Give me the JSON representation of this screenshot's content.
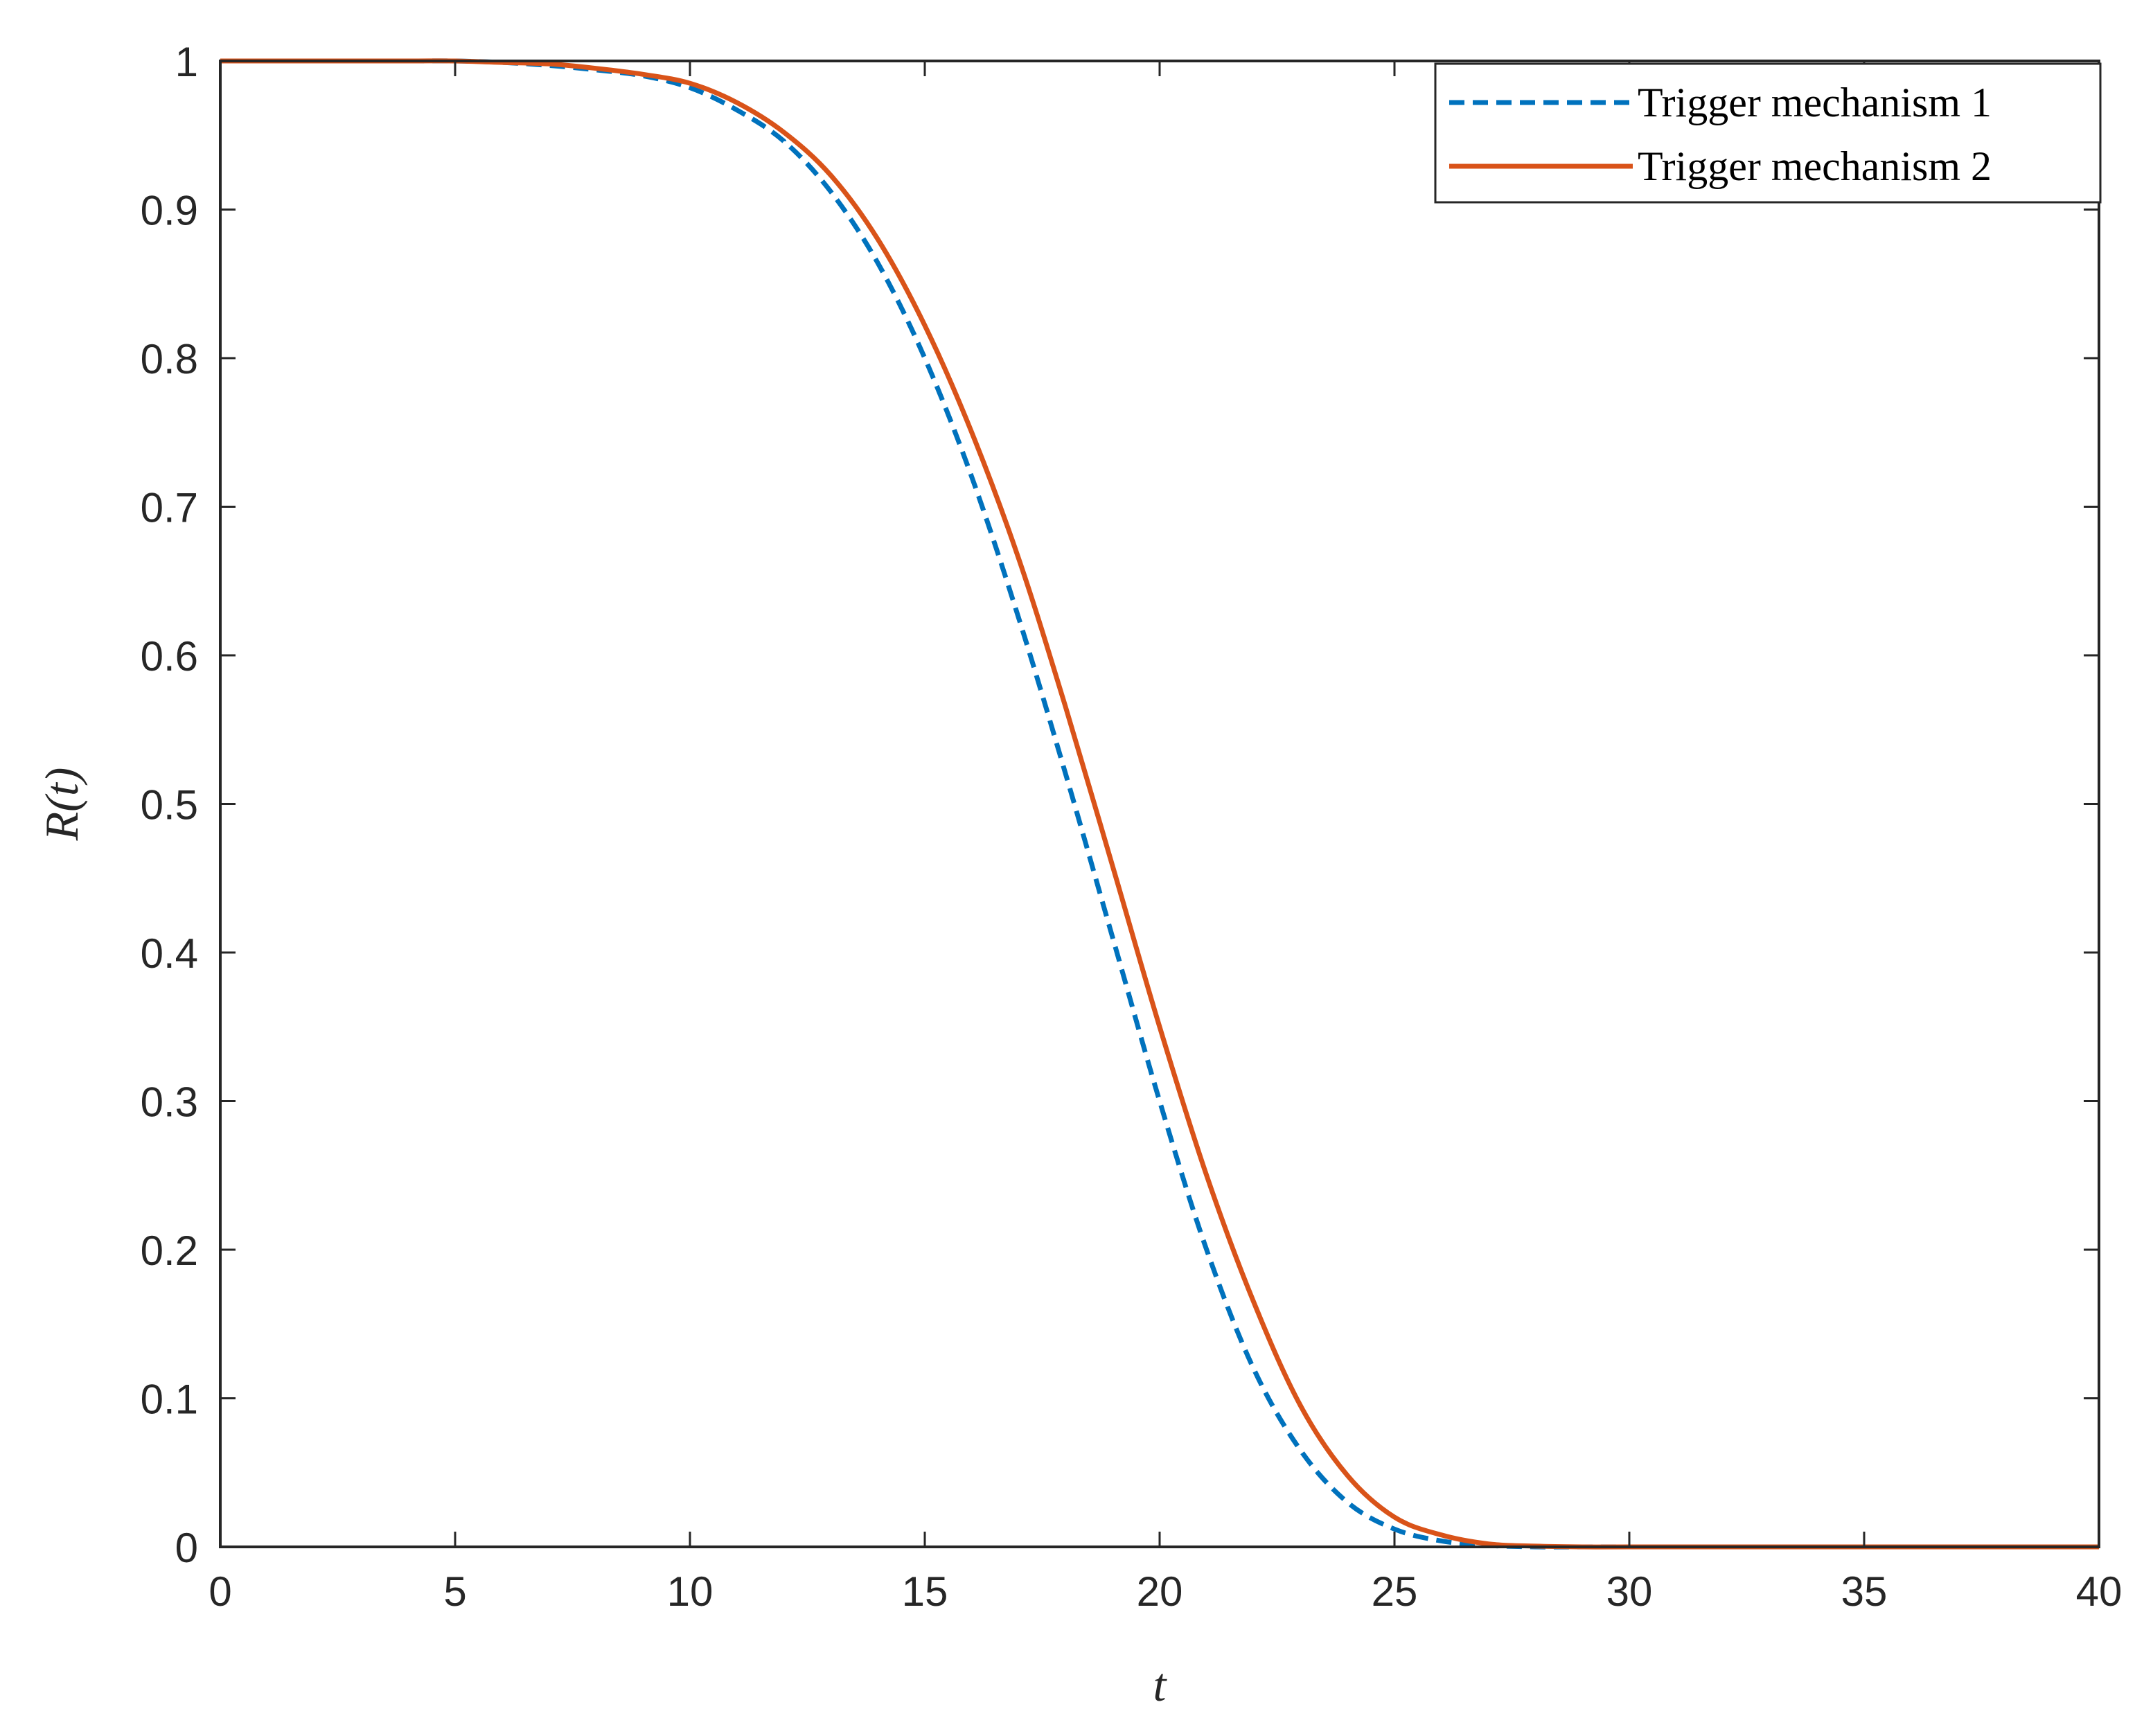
{
  "chart_data": {
    "type": "line",
    "title": "",
    "xlabel": "t",
    "ylabel": "R(t)",
    "xlim": [
      0,
      40
    ],
    "ylim": [
      0,
      1
    ],
    "xticks": [
      0,
      5,
      10,
      15,
      20,
      25,
      30,
      35,
      40
    ],
    "yticks": [
      0,
      0.1,
      0.2,
      0.3,
      0.4,
      0.5,
      0.6,
      0.7,
      0.8,
      0.9,
      1
    ],
    "xtick_labels": [
      "0",
      "5",
      "10",
      "15",
      "20",
      "25",
      "30",
      "35",
      "40"
    ],
    "ytick_labels": [
      "0",
      "0.1",
      "0.2",
      "0.3",
      "0.4",
      "0.5",
      "0.6",
      "0.7",
      "0.8",
      "0.9",
      "1"
    ],
    "grid": false,
    "legend_position": "top-right",
    "series": [
      {
        "name": "Trigger mechanism 1",
        "color": "#0072BD",
        "style": "dashed",
        "x": [
          0,
          2,
          4,
          5,
          6,
          7,
          8,
          9,
          10,
          11,
          12,
          13,
          14,
          15,
          16,
          17,
          18,
          19,
          20,
          21,
          22,
          23,
          24,
          25,
          26,
          27,
          28,
          29,
          30,
          32,
          35,
          40
        ],
        "y": [
          1,
          1,
          1,
          1,
          0.999,
          0.997,
          0.994,
          0.99,
          0.982,
          0.967,
          0.946,
          0.912,
          0.864,
          0.8,
          0.72,
          0.625,
          0.52,
          0.41,
          0.3,
          0.2,
          0.12,
          0.065,
          0.03,
          0.012,
          0.004,
          0.001,
          0,
          0,
          0,
          0,
          0,
          0
        ]
      },
      {
        "name": "Trigger mechanism 2",
        "color": "#D95319",
        "style": "solid",
        "x": [
          0,
          2,
          4,
          5,
          6,
          7,
          8,
          9,
          10,
          11,
          12,
          13,
          14,
          15,
          16,
          17,
          18,
          19,
          20,
          21,
          22,
          23,
          24,
          25,
          26,
          27,
          28,
          29,
          30,
          32,
          35,
          40
        ],
        "y": [
          1,
          1,
          1,
          1,
          0.999,
          0.998,
          0.995,
          0.991,
          0.985,
          0.972,
          0.952,
          0.923,
          0.88,
          0.822,
          0.75,
          0.665,
          0.565,
          0.458,
          0.35,
          0.25,
          0.165,
          0.095,
          0.048,
          0.02,
          0.008,
          0.002,
          0.0005,
          0,
          0,
          0,
          0,
          0
        ]
      }
    ]
  }
}
